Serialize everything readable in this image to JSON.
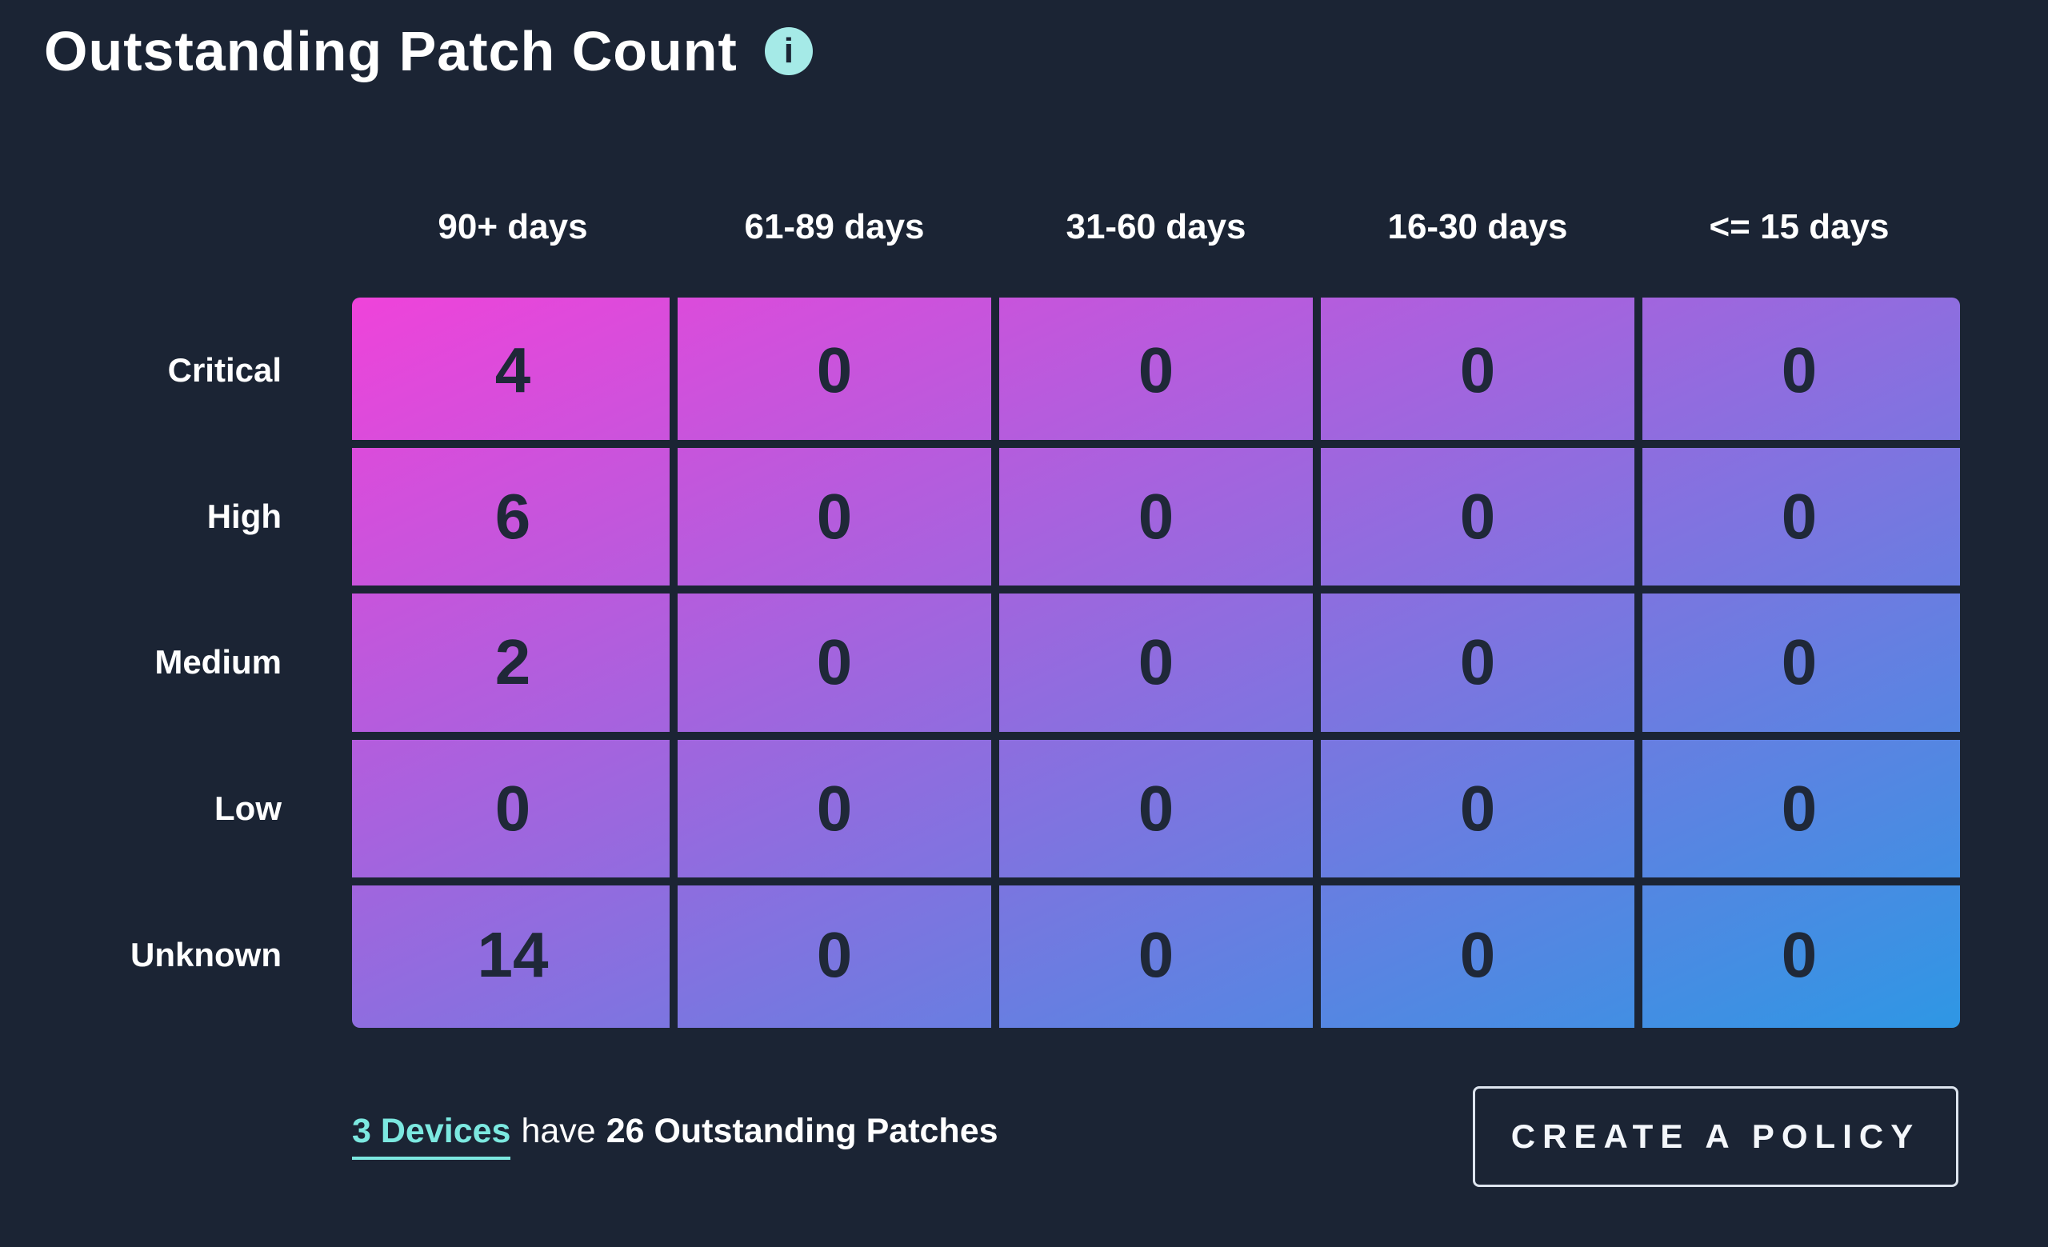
{
  "header": {
    "title": "Outstanding Patch Count",
    "info_icon_glyph": "i"
  },
  "chart_data": {
    "type": "heatmap",
    "title": "Outstanding Patch Count",
    "columns": [
      "90+ days",
      "61-89 days",
      "31-60 days",
      "16-30 days",
      "<= 15 days"
    ],
    "rows": [
      "Critical",
      "High",
      "Medium",
      "Low",
      "Unknown"
    ],
    "values": [
      [
        4,
        0,
        0,
        0,
        0
      ],
      [
        6,
        0,
        0,
        0,
        0
      ],
      [
        2,
        0,
        0,
        0,
        0
      ],
      [
        0,
        0,
        0,
        0,
        0
      ],
      [
        14,
        0,
        0,
        0,
        0
      ]
    ],
    "color_scale": "diagonal gradient, magenta top-left to blue bottom-right",
    "legend_position": "none",
    "grid": "dark gridlines between cells"
  },
  "footer": {
    "link_text": "3 Devices",
    "middle_text": "have",
    "bold_text": "26 Outstanding Patches",
    "button_label": "CREATE A POLICY"
  },
  "colors": {
    "background": "#1b2434",
    "title_text": "#ffffff",
    "info_icon_bg": "#a5eae7",
    "gradient_start": "#ef43da",
    "gradient_end": "#2e97e4",
    "gridline": "#1b2434",
    "cell_number": "#1f2838",
    "link": "#7ce8e0",
    "button_border": "#dde4ee",
    "button_text": "#f4f7fb"
  }
}
